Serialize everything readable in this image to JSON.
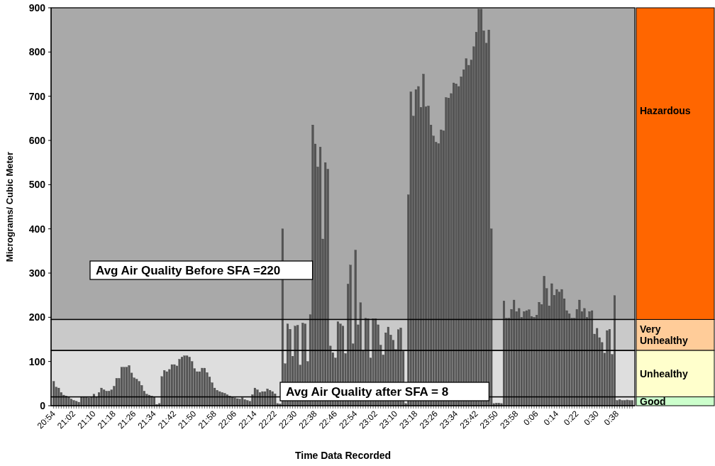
{
  "chart_data": {
    "type": "bar",
    "xlabel": "Time Data Recorded",
    "ylabel": "Micrograms/ Cubic Meter",
    "categories": [
      "20:54",
      null,
      null,
      null,
      null,
      null,
      null,
      null,
      "21:02",
      null,
      null,
      null,
      null,
      null,
      null,
      null,
      "21:10",
      null,
      null,
      null,
      null,
      null,
      null,
      null,
      "21:18",
      null,
      null,
      null,
      null,
      null,
      null,
      null,
      "21:26",
      null,
      null,
      null,
      null,
      null,
      null,
      null,
      "21:34",
      null,
      null,
      null,
      null,
      null,
      null,
      null,
      "21:42",
      null,
      null,
      null,
      null,
      null,
      null,
      null,
      "21:50",
      null,
      null,
      null,
      null,
      null,
      null,
      null,
      "21:58",
      null,
      null,
      null,
      null,
      null,
      null,
      null,
      "22:06",
      null,
      null,
      null,
      null,
      null,
      null,
      null,
      "22:14",
      null,
      null,
      null,
      null,
      null,
      null,
      null,
      "22:22",
      null,
      null,
      null,
      null,
      null,
      null,
      null,
      "22:30",
      null,
      null,
      null,
      null,
      null,
      null,
      null,
      "22:38",
      null,
      null,
      null,
      null,
      null,
      null,
      null,
      "22:46",
      null,
      null,
      null,
      null,
      null,
      null,
      null,
      "22:54",
      null,
      null,
      null,
      null,
      null,
      null,
      null,
      "23:02",
      null,
      null,
      null,
      null,
      null,
      null,
      null,
      "23:10",
      null,
      null,
      null,
      null,
      null,
      null,
      null,
      "23:18",
      null,
      null,
      null,
      null,
      null,
      null,
      null,
      "23:26",
      null,
      null,
      null,
      null,
      null,
      null,
      null,
      "23:34",
      null,
      null,
      null,
      null,
      null,
      null,
      null,
      "23:42",
      null,
      null,
      null,
      null,
      null,
      null,
      null,
      "23:50",
      null,
      null,
      null,
      null,
      null,
      null,
      null,
      "23:58",
      null,
      null,
      null,
      null,
      null,
      null,
      null,
      "0:06",
      null,
      null,
      null,
      null,
      null,
      null,
      null,
      "0:14",
      null,
      null,
      null,
      null,
      null,
      null,
      null,
      "0:22",
      null,
      null,
      null,
      null,
      null,
      null,
      null,
      "0:30",
      null,
      null,
      null,
      null,
      null,
      null,
      null,
      "0:38",
      null,
      null,
      null,
      null,
      null,
      null
    ],
    "series": [
      {
        "color": "#555555",
        "values": [
          55,
          42,
          40,
          30,
          24,
          22,
          20,
          15,
          12,
          10,
          8,
          20,
          20,
          20,
          18,
          20,
          26,
          20,
          30,
          40,
          36,
          33,
          33,
          36,
          44,
          62,
          62,
          87,
          87,
          87,
          91,
          74,
          63,
          60,
          55,
          46,
          33,
          26,
          24,
          22,
          20,
          3,
          5,
          66,
          80,
          77,
          82,
          93,
          93,
          90,
          105,
          110,
          113,
          113,
          110,
          100,
          84,
          77,
          77,
          85,
          85,
          75,
          65,
          52,
          40,
          35,
          32,
          30,
          28,
          25,
          22,
          20,
          18,
          16,
          15,
          18,
          14,
          12,
          10,
          25,
          40,
          36,
          30,
          32,
          32,
          38,
          35,
          32,
          27,
          5,
          4,
          400,
          95,
          185,
          173,
          112,
          180,
          182,
          92,
          187,
          185,
          100,
          206,
          635,
          592,
          540,
          585,
          377,
          550,
          535,
          135,
          120,
          108,
          190,
          185,
          180,
          118,
          275,
          318,
          140,
          352,
          183,
          233,
          125,
          198,
          197,
          108,
          197,
          197,
          183,
          137,
          115,
          165,
          178,
          160,
          148,
          127,
          172,
          176,
          123,
          5,
          477,
          710,
          655,
          715,
          722,
          675,
          750,
          676,
          678,
          635,
          610,
          596,
          593,
          624,
          622,
          697,
          696,
          706,
          730,
          728,
          722,
          744,
          760,
          785,
          770,
          782,
          812,
          845,
          897,
          897,
          848,
          820,
          850,
          400,
          5,
          6,
          6,
          5,
          237,
          198,
          198,
          218,
          239,
          213,
          220,
          200,
          213,
          215,
          217,
          202,
          200,
          205,
          234,
          229,
          293,
          265,
          226,
          276,
          250,
          263,
          257,
          263,
          242,
          215,
          208,
          198,
          198,
          218,
          239,
          213,
          220,
          200,
          213,
          215,
          162,
          175,
          154,
          143,
          119,
          170,
          173,
          116,
          249,
          12,
          14,
          12,
          12,
          13,
          12,
          12
        ]
      }
    ],
    "ylim": [
      0,
      900
    ],
    "yticks": [
      0,
      100,
      200,
      300,
      400,
      500,
      600,
      700,
      800,
      900
    ],
    "bands": [
      {
        "axis": "y",
        "from": 195,
        "to": 900,
        "label": "Hazardous",
        "color": "#a9a9a9"
      },
      {
        "axis": "y",
        "from": 125,
        "to": 195,
        "label": "Very Unhealthy",
        "color": "#c9c9c9"
      },
      {
        "axis": "y",
        "from": 20,
        "to": 125,
        "label": "Unhealthy",
        "color": "#dedede"
      },
      {
        "axis": "y",
        "from": 0,
        "to": 20,
        "label": "Good",
        "color": "#e4e4e4"
      }
    ],
    "annotations": [
      "Avg Air Quality Before SFA =220",
      "Avg Air Quality after SFA = 8"
    ]
  }
}
